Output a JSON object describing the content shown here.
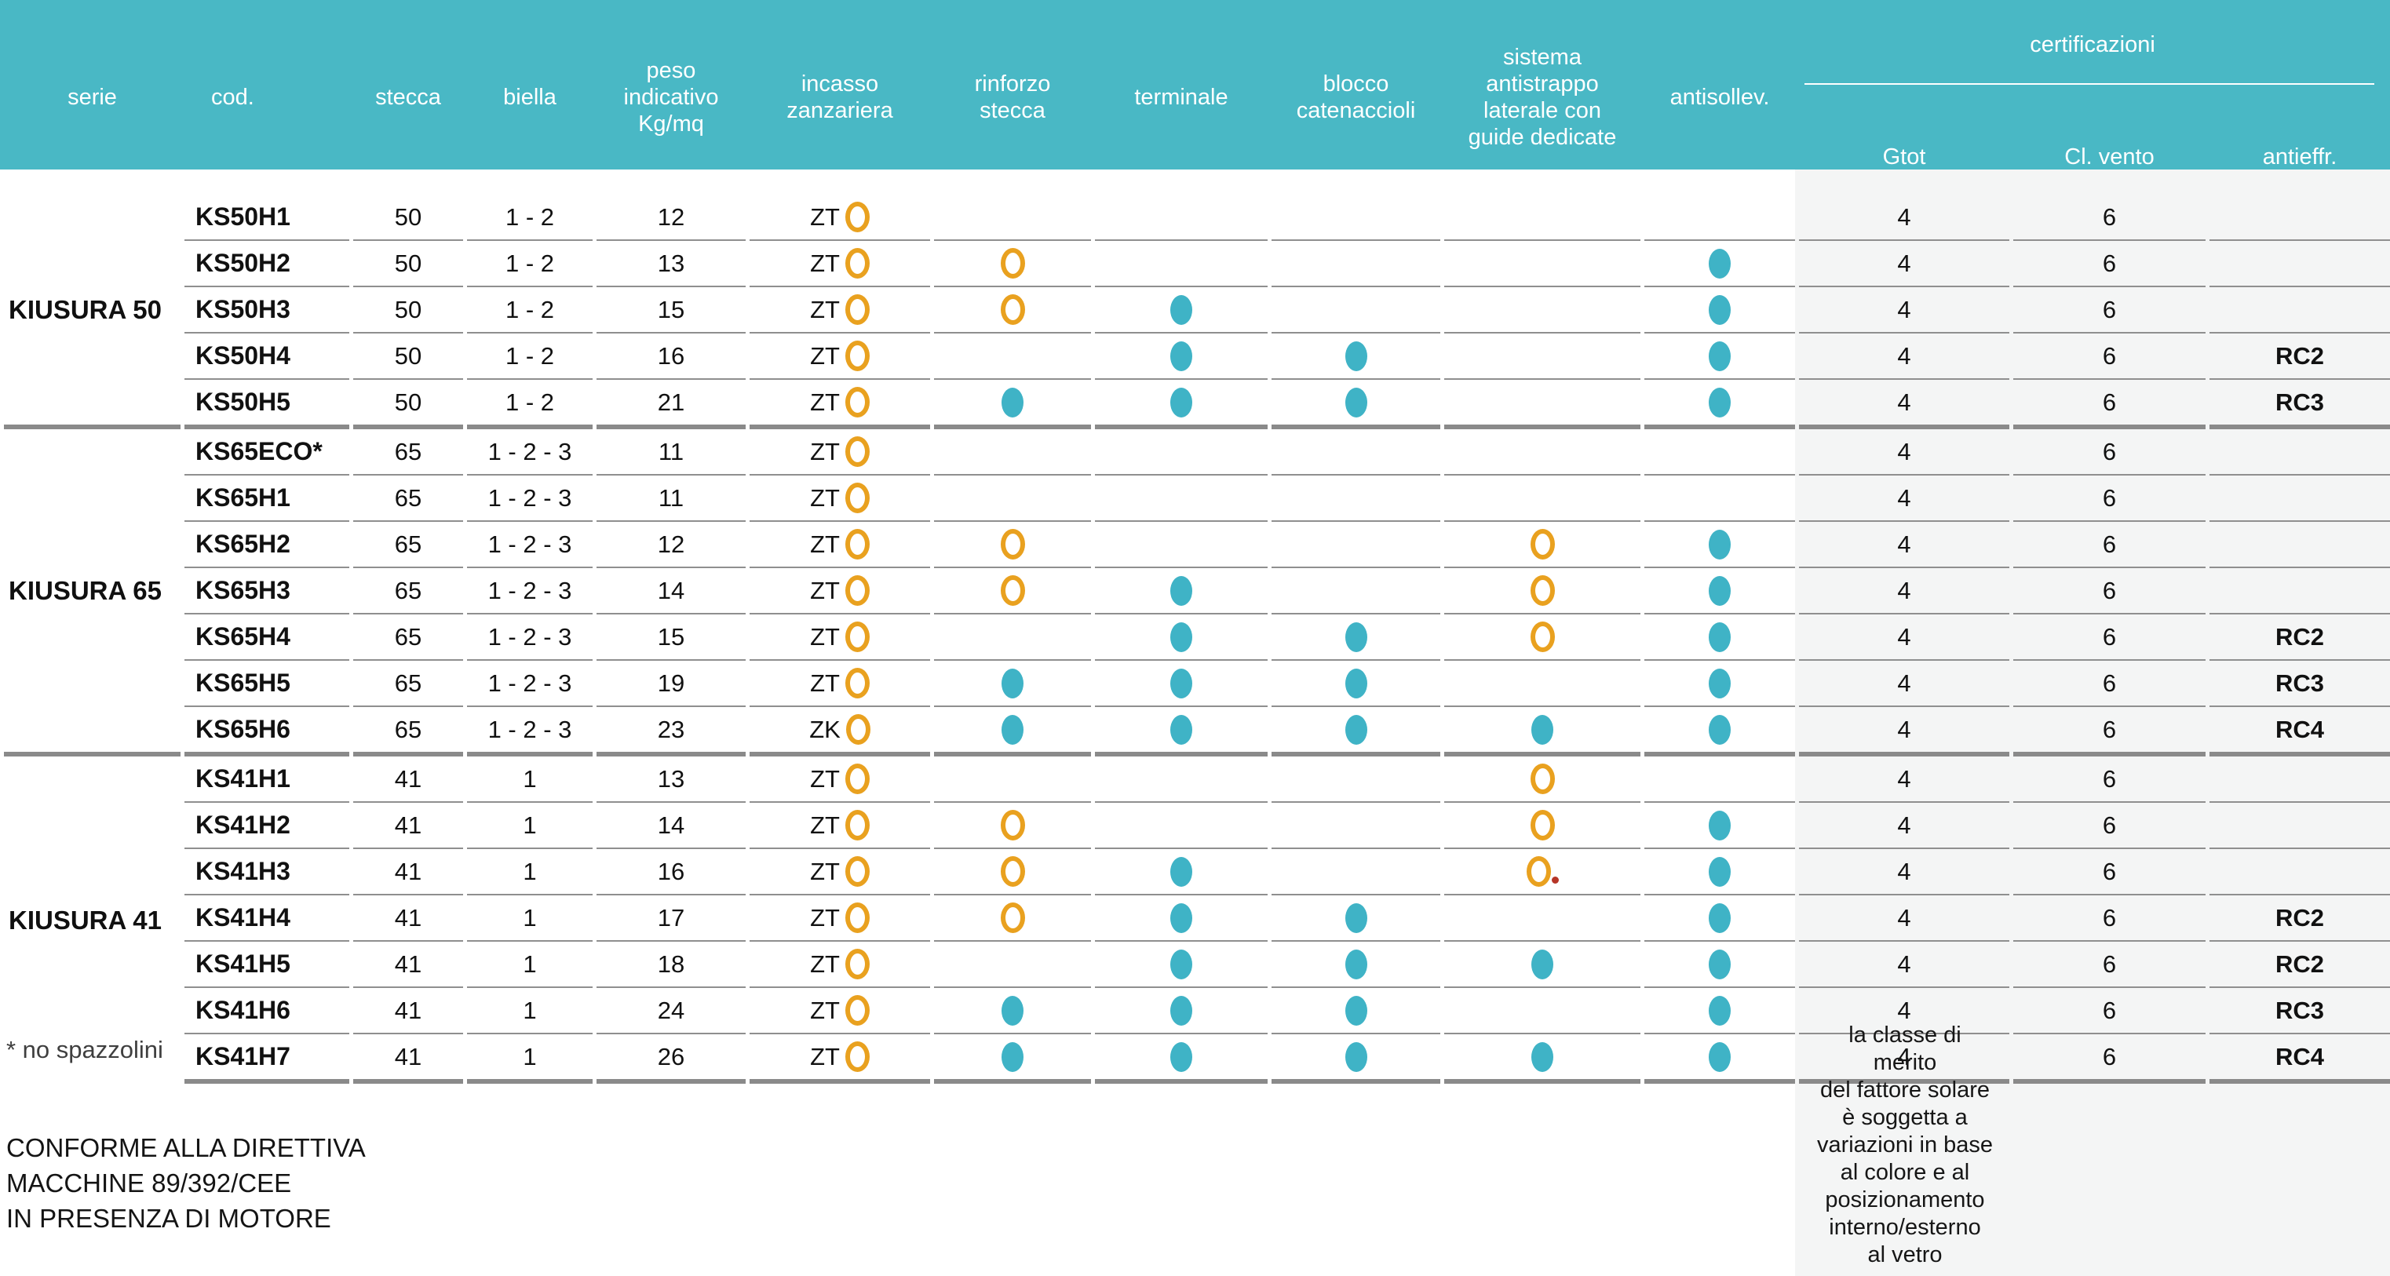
{
  "header": {
    "columns": {
      "serie": "serie",
      "cod": "cod.",
      "stecca": "stecca",
      "biella": "biella",
      "peso": "peso\nindicativo\nKg/mq",
      "incasso": "incasso\nzanzariera",
      "rinforzo": "rinforzo\nstecca",
      "terminale": "terminale",
      "blocco": "blocco\ncatenaccioli",
      "sistema": "sistema\nantistrappo\nlaterale con\nguide dedicate",
      "antisollev": "antisollev."
    },
    "certificazioni": {
      "title": "certificazioni",
      "sub": [
        "Gtot",
        "Cl. vento",
        "antieffr."
      ]
    }
  },
  "groups": [
    {
      "serie": "KIUSURA 50",
      "rows": [
        {
          "cod": "KS50H1",
          "stecca": "50",
          "biella": "1 - 2",
          "peso": "12",
          "incasso": "ZT",
          "rinforzo": "",
          "terminale": "",
          "blocco": "",
          "sistema": "",
          "antisollev": "",
          "gtot": "4",
          "vento": "6",
          "antieffr": ""
        },
        {
          "cod": "KS50H2",
          "stecca": "50",
          "biella": "1 - 2",
          "peso": "13",
          "incasso": "ZT",
          "rinforzo": "ring",
          "terminale": "",
          "blocco": "",
          "sistema": "",
          "antisollev": "dot",
          "gtot": "4",
          "vento": "6",
          "antieffr": ""
        },
        {
          "cod": "KS50H3",
          "stecca": "50",
          "biella": "1 - 2",
          "peso": "15",
          "incasso": "ZT",
          "rinforzo": "ring",
          "terminale": "dot",
          "blocco": "",
          "sistema": "",
          "antisollev": "dot",
          "gtot": "4",
          "vento": "6",
          "antieffr": ""
        },
        {
          "cod": "KS50H4",
          "stecca": "50",
          "biella": "1 - 2",
          "peso": "16",
          "incasso": "ZT",
          "rinforzo": "",
          "terminale": "dot",
          "blocco": "dot",
          "sistema": "",
          "antisollev": "dot",
          "gtot": "4",
          "vento": "6",
          "antieffr": "RC2"
        },
        {
          "cod": "KS50H5",
          "stecca": "50",
          "biella": "1 - 2",
          "peso": "21",
          "incasso": "ZT",
          "rinforzo": "dot",
          "terminale": "dot",
          "blocco": "dot",
          "sistema": "",
          "antisollev": "dot",
          "gtot": "4",
          "vento": "6",
          "antieffr": "RC3"
        }
      ]
    },
    {
      "serie": "KIUSURA 65",
      "rows": [
        {
          "cod": "KS65ECO*",
          "stecca": "65",
          "biella": "1 - 2 - 3",
          "peso": "11",
          "incasso": "ZT",
          "rinforzo": "",
          "terminale": "",
          "blocco": "",
          "sistema": "",
          "antisollev": "",
          "gtot": "4",
          "vento": "6",
          "antieffr": ""
        },
        {
          "cod": "KS65H1",
          "stecca": "65",
          "biella": "1 - 2 - 3",
          "peso": "11",
          "incasso": "ZT",
          "rinforzo": "",
          "terminale": "",
          "blocco": "",
          "sistema": "",
          "antisollev": "",
          "gtot": "4",
          "vento": "6",
          "antieffr": ""
        },
        {
          "cod": "KS65H2",
          "stecca": "65",
          "biella": "1 - 2 - 3",
          "peso": "12",
          "incasso": "ZT",
          "rinforzo": "ring",
          "terminale": "",
          "blocco": "",
          "sistema": "ring",
          "antisollev": "dot",
          "gtot": "4",
          "vento": "6",
          "antieffr": ""
        },
        {
          "cod": "KS65H3",
          "stecca": "65",
          "biella": "1 - 2 - 3",
          "peso": "14",
          "incasso": "ZT",
          "rinforzo": "ring",
          "terminale": "dot",
          "blocco": "",
          "sistema": "ring",
          "antisollev": "dot",
          "gtot": "4",
          "vento": "6",
          "antieffr": ""
        },
        {
          "cod": "KS65H4",
          "stecca": "65",
          "biella": "1 - 2 - 3",
          "peso": "15",
          "incasso": "ZT",
          "rinforzo": "",
          "terminale": "dot",
          "blocco": "dot",
          "sistema": "ring",
          "antisollev": "dot",
          "gtot": "4",
          "vento": "6",
          "antieffr": "RC2"
        },
        {
          "cod": "KS65H5",
          "stecca": "65",
          "biella": "1 - 2 - 3",
          "peso": "19",
          "incasso": "ZT",
          "rinforzo": "dot",
          "terminale": "dot",
          "blocco": "dot",
          "sistema": "",
          "antisollev": "dot",
          "gtot": "4",
          "vento": "6",
          "antieffr": "RC3"
        },
        {
          "cod": "KS65H6",
          "stecca": "65",
          "biella": "1 - 2 - 3",
          "peso": "23",
          "incasso": "ZK",
          "rinforzo": "dot",
          "terminale": "dot",
          "blocco": "dot",
          "sistema": "dot",
          "antisollev": "dot",
          "gtot": "4",
          "vento": "6",
          "antieffr": "RC4"
        }
      ]
    },
    {
      "serie": "KIUSURA 41",
      "rows": [
        {
          "cod": "KS41H1",
          "stecca": "41",
          "biella": "1",
          "peso": "13",
          "incasso": "ZT",
          "rinforzo": "",
          "terminale": "",
          "blocco": "",
          "sistema": "ring",
          "antisollev": "",
          "gtot": "4",
          "vento": "6",
          "antieffr": ""
        },
        {
          "cod": "KS41H2",
          "stecca": "41",
          "biella": "1",
          "peso": "14",
          "incasso": "ZT",
          "rinforzo": "ring",
          "terminale": "",
          "blocco": "",
          "sistema": "ring",
          "antisollev": "dot",
          "gtot": "4",
          "vento": "6",
          "antieffr": ""
        },
        {
          "cod": "KS41H3",
          "stecca": "41",
          "biella": "1",
          "peso": "16",
          "incasso": "ZT",
          "rinforzo": "ring",
          "terminale": "dot",
          "blocco": "",
          "sistema": "ring+reddot",
          "antisollev": "dot",
          "gtot": "4",
          "vento": "6",
          "antieffr": ""
        },
        {
          "cod": "KS41H4",
          "stecca": "41",
          "biella": "1",
          "peso": "17",
          "incasso": "ZT",
          "rinforzo": "ring",
          "terminale": "dot",
          "blocco": "dot",
          "sistema": "",
          "antisollev": "dot",
          "gtot": "4",
          "vento": "6",
          "antieffr": "RC2"
        },
        {
          "cod": "KS41H5",
          "stecca": "41",
          "biella": "1",
          "peso": "18",
          "incasso": "ZT",
          "rinforzo": "",
          "terminale": "dot",
          "blocco": "dot",
          "sistema": "dot",
          "antisollev": "dot",
          "gtot": "4",
          "vento": "6",
          "antieffr": "RC2"
        },
        {
          "cod": "KS41H6",
          "stecca": "41",
          "biella": "1",
          "peso": "24",
          "incasso": "ZT",
          "rinforzo": "dot",
          "terminale": "dot",
          "blocco": "dot",
          "sistema": "",
          "antisollev": "dot",
          "gtot": "4",
          "vento": "6",
          "antieffr": "RC3"
        },
        {
          "cod": "KS41H7",
          "stecca": "41",
          "biella": "1",
          "peso": "26",
          "incasso": "ZT",
          "rinforzo": "dot",
          "terminale": "dot",
          "blocco": "dot",
          "sistema": "dot",
          "antisollev": "dot",
          "gtot": "4",
          "vento": "6",
          "antieffr": "RC4"
        }
      ]
    }
  ],
  "footer": {
    "asterisk_note": "* no spazzolini",
    "directive": "CONFORME ALLA DIRETTIVA\nMACCHINE 89/392/CEE\nIN PRESENZA DI MOTORE",
    "solar_note": "la classe di\nmerito\ndel fattore solare\nè soggetta a\nvariazioni in base\nal colore e al\nposizionamento\ninterno/esterno\nal vetro"
  },
  "colors": {
    "header_teal": "#49b8c5",
    "dot_teal": "#3fb3c6",
    "ring_orange": "#e9a11f",
    "red_period": "#b63527",
    "cert_area_gray": "#f4f5f5",
    "thin_line": "#8f8f8f",
    "thick_line": "#8a8a8a"
  },
  "icons": {
    "dot": "filled-teal-dot",
    "ring": "orange-outline-ring"
  }
}
